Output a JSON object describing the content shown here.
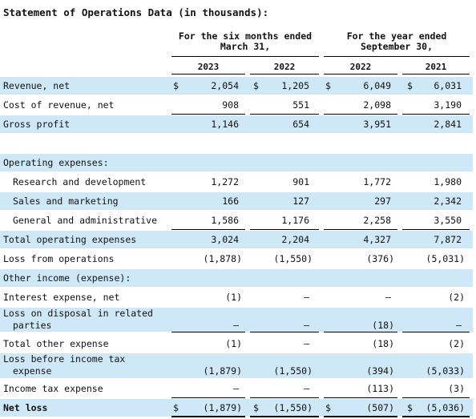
{
  "title": "Statement of Operations Data (in thousands):",
  "headers": {
    "six_months_line1": "For the six months ended",
    "six_months_line2": "March 31,",
    "year_line1": "For the year ended",
    "year_line2": "September  30,"
  },
  "years": [
    "2023",
    "2022",
    "2022",
    "2021"
  ],
  "currency_symbol": "$",
  "colors": {
    "shade": "#cfe8f7"
  },
  "rows": [
    {
      "label": "Revenue, net",
      "values": [
        "2,054",
        "1,205",
        "6,049",
        "6,031"
      ]
    },
    {
      "label": "Cost of revenue, net",
      "values": [
        "908",
        "551",
        "2,098",
        "3,190"
      ]
    },
    {
      "label": "Gross profit",
      "values": [
        "1,146",
        "654",
        "3,951",
        "2,841"
      ]
    },
    {
      "label": "",
      "values": [
        "",
        "",
        "",
        ""
      ]
    },
    {
      "label": "Operating expenses:",
      "values": [
        "",
        "",
        "",
        ""
      ]
    },
    {
      "label": "Research and development",
      "values": [
        "1,272",
        "901",
        "1,772",
        "1,980"
      ]
    },
    {
      "label": "Sales and marketing",
      "values": [
        "166",
        "127",
        "297",
        "2,342"
      ]
    },
    {
      "label": "General and administrative",
      "values": [
        "1,586",
        "1,176",
        "2,258",
        "3,550"
      ]
    },
    {
      "label": "Total operating expenses",
      "values": [
        "3,024",
        "2,204",
        "4,327",
        "7,872"
      ]
    },
    {
      "label": "Loss from operations",
      "values": [
        "(1,878)",
        "(1,550)",
        "(376)",
        "(5,031)"
      ]
    },
    {
      "label": "Other income (expense):",
      "values": [
        "",
        "",
        "",
        ""
      ]
    },
    {
      "label": "Interest expense, net",
      "values": [
        "(1)",
        "—",
        "—",
        "(2)"
      ]
    },
    {
      "label_line1": "Loss on disposal in related",
      "label_line2": "parties",
      "values": [
        "—",
        "—",
        "(18)",
        "—"
      ]
    },
    {
      "label": "Total other expense",
      "values": [
        "(1)",
        "—",
        "(18)",
        "(2)"
      ]
    },
    {
      "label_line1": "Loss before income tax",
      "label_line2": "expense",
      "values": [
        "(1,879)",
        "(1,550)",
        "(394)",
        "(5,033)"
      ]
    },
    {
      "label": "Income tax expense",
      "values": [
        "—",
        "—",
        "(113)",
        "(3)"
      ]
    },
    {
      "label": "Net loss",
      "values": [
        "(1,879)",
        "(1,550)",
        "(507)",
        "(5,036)"
      ]
    }
  ]
}
